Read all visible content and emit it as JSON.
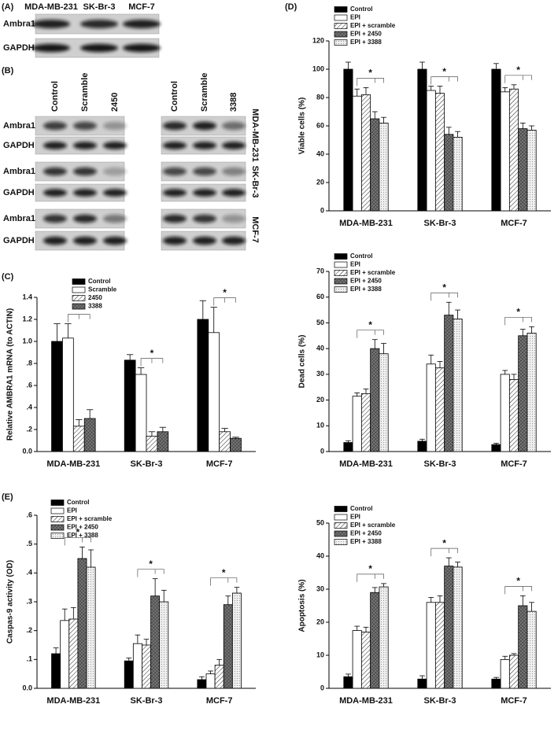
{
  "blots": {
    "A": {
      "panel_label": "(A)",
      "columns": [
        "MDA-MB-231",
        "SK-Br-3",
        "MCF-7"
      ],
      "rows": [
        "Ambra1",
        "GAPDH"
      ]
    },
    "B": {
      "panel_label": "(B)",
      "left_columns": [
        "Control",
        "Scramble",
        "2450"
      ],
      "right_columns": [
        "Control",
        "Scramble",
        "3388"
      ],
      "groups": [
        {
          "cell_line": "MDA-MB-231",
          "rows": [
            "Ambra1",
            "GAPDH"
          ]
        },
        {
          "cell_line": "SK-Br-3",
          "rows": [
            "Ambra1",
            "GAPDH"
          ]
        },
        {
          "cell_line": "MCF-7",
          "rows": [
            "Ambra1",
            "GAPDH"
          ]
        }
      ]
    }
  },
  "chart_data": [
    {
      "type": "bar",
      "panel_label": "(C)",
      "y_label": "Relative AMBRA1 mRNA (to ACTIN)",
      "annotation": "*",
      "categories": [
        "MDA-MB-231",
        "SK-Br-3",
        "MCF-7"
      ],
      "ylim": [
        0,
        1.4
      ],
      "yticks": [
        {
          "value": 0,
          "label": "0.0"
        },
        {
          "value": 0.2,
          "label": ".2"
        },
        {
          "value": 0.4,
          "label": ".4"
        },
        {
          "value": 0.6,
          "label": ".6"
        },
        {
          "value": 0.8,
          "label": ".8"
        },
        {
          "value": 1.0,
          "label": "1.0"
        },
        {
          "value": 1.2,
          "label": "1.2"
        },
        {
          "value": 1.4,
          "label": "1.4"
        }
      ],
      "legend": "upper left",
      "series": [
        {
          "name": "Control",
          "color": "#000000",
          "pattern": "solid",
          "values": [
            1.0,
            0.83,
            1.2
          ],
          "errors": [
            0.16,
            0.05,
            0.17
          ]
        },
        {
          "name": "Scramble",
          "color": "#ffffff",
          "pattern": "solid",
          "values": [
            1.03,
            0.7,
            1.08
          ],
          "errors": [
            0.13,
            0.06,
            0.23
          ]
        },
        {
          "name": "2450",
          "color": "#ffffff",
          "pattern": "hatch",
          "values": [
            0.23,
            0.14,
            0.18
          ],
          "errors": [
            0.06,
            0.04,
            0.03
          ]
        },
        {
          "name": "3388",
          "color": "#ffffff",
          "pattern": "crosshatch",
          "values": [
            0.3,
            0.18,
            0.12
          ],
          "errors": [
            0.08,
            0.04,
            0.01
          ]
        }
      ]
    },
    {
      "type": "bar",
      "panel_label": "(D)",
      "y_label": "Viable cells (%)",
      "annotation": "*",
      "categories": [
        "MDA-MB-231",
        "SK-Br-3",
        "MCF-7"
      ],
      "ylim": [
        0,
        120
      ],
      "yticks": [
        0,
        20,
        40,
        60,
        80,
        100,
        120
      ],
      "legend": "upper left",
      "series": [
        {
          "name": "Control",
          "color": "#000000",
          "pattern": "solid",
          "values": [
            100,
            100,
            100
          ],
          "errors": [
            5,
            5,
            4
          ]
        },
        {
          "name": "EPI",
          "color": "#ffffff",
          "pattern": "solid",
          "values": [
            81,
            85,
            84
          ],
          "errors": [
            5,
            3,
            3
          ]
        },
        {
          "name": "EPI + scramble",
          "color": "#ffffff",
          "pattern": "hatch",
          "values": [
            82,
            83,
            86
          ],
          "errors": [
            5,
            5,
            3
          ]
        },
        {
          "name": "EPI + 2450",
          "color": "#ffffff",
          "pattern": "crosshatch",
          "values": [
            65,
            54,
            58
          ],
          "errors": [
            5,
            5,
            4
          ]
        },
        {
          "name": "EPI + 3388",
          "color": "#ffffff",
          "pattern": "dots",
          "values": [
            62,
            52,
            57
          ],
          "errors": [
            4,
            4,
            3
          ]
        }
      ]
    },
    {
      "type": "bar",
      "y_label": "Dead cells (%)",
      "annotation": "*",
      "categories": [
        "MDA-MB-231",
        "SK-Br-3",
        "MCF-7"
      ],
      "ylim": [
        0,
        70
      ],
      "yticks": [
        0,
        10,
        20,
        30,
        40,
        50,
        60,
        70
      ],
      "legend": "upper left",
      "series": [
        {
          "name": "Control",
          "color": "#000000",
          "pattern": "solid",
          "values": [
            3.5,
            4,
            2.7
          ],
          "errors": [
            0.7,
            0.8,
            0.5
          ]
        },
        {
          "name": "EPI",
          "color": "#ffffff",
          "pattern": "solid",
          "values": [
            21.5,
            34,
            30
          ],
          "errors": [
            1.3,
            3.5,
            1.5
          ]
        },
        {
          "name": "EPI + scramble",
          "color": "#ffffff",
          "pattern": "hatch",
          "values": [
            22.5,
            32.5,
            28
          ],
          "errors": [
            1.8,
            2.5,
            2
          ]
        },
        {
          "name": "EPI + 2450",
          "color": "#ffffff",
          "pattern": "crosshatch",
          "values": [
            40,
            53,
            45
          ],
          "errors": [
            3.5,
            5,
            2.5
          ]
        },
        {
          "name": "EPI + 3388",
          "color": "#ffffff",
          "pattern": "dots",
          "values": [
            38,
            51.5,
            46
          ],
          "errors": [
            4,
            3.5,
            2.5
          ]
        }
      ]
    },
    {
      "type": "bar",
      "panel_label": "(E)",
      "y_label": "Caspas-9 activity (OD)",
      "annotation": "*",
      "categories": [
        "MDA-MB-231",
        "SK-Br-3",
        "MCF-7"
      ],
      "ylim": [
        0,
        0.6
      ],
      "yticks": [
        {
          "value": 0,
          "label": "0.0"
        },
        {
          "value": 0.1,
          "label": ".1"
        },
        {
          "value": 0.2,
          "label": ".2"
        },
        {
          "value": 0.3,
          "label": ".3"
        },
        {
          "value": 0.4,
          "label": ".4"
        },
        {
          "value": 0.5,
          "label": ".5"
        },
        {
          "value": 0.6,
          "label": ".6"
        }
      ],
      "legend": "upper left",
      "series": [
        {
          "name": "Control",
          "color": "#000000",
          "pattern": "solid",
          "values": [
            0.12,
            0.095,
            0.03
          ],
          "errors": [
            0.02,
            0.01,
            0.01
          ]
        },
        {
          "name": "EPI",
          "color": "#ffffff",
          "pattern": "solid",
          "values": [
            0.235,
            0.155,
            0.05
          ],
          "errors": [
            0.04,
            0.03,
            0.01
          ]
        },
        {
          "name": "EPI + scramble",
          "color": "#ffffff",
          "pattern": "hatch",
          "values": [
            0.24,
            0.15,
            0.08
          ],
          "errors": [
            0.04,
            0.02,
            0.02
          ]
        },
        {
          "name": "EPI + 2450",
          "color": "#ffffff",
          "pattern": "crosshatch",
          "values": [
            0.45,
            0.32,
            0.29
          ],
          "errors": [
            0.04,
            0.06,
            0.03
          ]
        },
        {
          "name": "EPI + 3388",
          "color": "#ffffff",
          "pattern": "dots",
          "values": [
            0.42,
            0.3,
            0.33
          ],
          "errors": [
            0.06,
            0.04,
            0.02
          ]
        }
      ]
    },
    {
      "type": "bar",
      "y_label": "Apoptosis (%)",
      "annotation": "*",
      "categories": [
        "MDA-MB-231",
        "SK-Br-3",
        "MCF-7"
      ],
      "ylim": [
        0,
        50
      ],
      "yticks": [
        0,
        10,
        20,
        30,
        40,
        50
      ],
      "legend": "upper left",
      "series": [
        {
          "name": "Control",
          "color": "#000000",
          "pattern": "solid",
          "values": [
            3.5,
            2.8,
            2.8
          ],
          "errors": [
            0.8,
            1,
            0.5
          ]
        },
        {
          "name": "EPI",
          "color": "#ffffff",
          "pattern": "solid",
          "values": [
            17.5,
            26,
            8.7
          ],
          "errors": [
            1.3,
            1.5,
            1
          ]
        },
        {
          "name": "EPI + scramble",
          "color": "#ffffff",
          "pattern": "hatch",
          "values": [
            17,
            26,
            10
          ],
          "errors": [
            1.5,
            2,
            0.5
          ]
        },
        {
          "name": "EPI + 2450",
          "color": "#ffffff",
          "pattern": "crosshatch",
          "values": [
            29,
            37,
            25
          ],
          "errors": [
            1.5,
            2.5,
            3
          ]
        },
        {
          "name": "EPI + 3388",
          "color": "#ffffff",
          "pattern": "dots",
          "values": [
            30.7,
            36.7,
            23.3
          ],
          "errors": [
            1,
            1.5,
            2.7
          ]
        }
      ]
    }
  ]
}
